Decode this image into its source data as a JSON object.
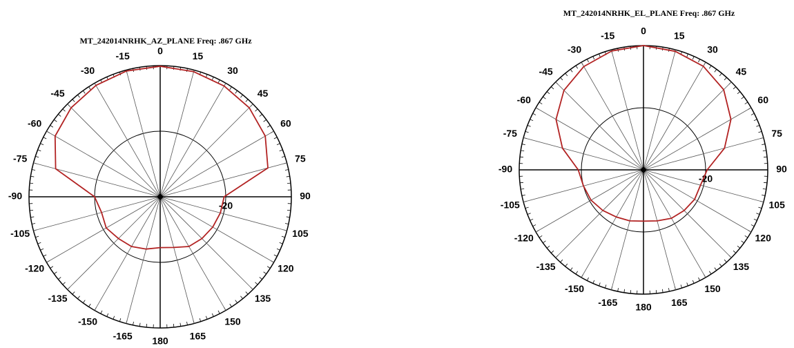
{
  "chart_data": [
    {
      "type": "polar",
      "title": "MT_242014NRHK_AZ_PLANE  Freq:  .867 GHz",
      "color": "#b22222",
      "theta": [
        -180,
        -165,
        -150,
        -135,
        -120,
        -105,
        -90,
        -75,
        -60,
        -45,
        -30,
        -15,
        0,
        15,
        30,
        45,
        60,
        75,
        90,
        105,
        120,
        135,
        150,
        165,
        180
      ],
      "values": [
        -24.5,
        -23.5,
        -22.5,
        -22,
        -21,
        -21.5,
        -20,
        -7,
        -3,
        -1.6,
        -0.8,
        -0.3,
        -0.2,
        -0.5,
        -1,
        -1.6,
        -3,
        -6,
        -20.5,
        -21,
        -21.5,
        -22,
        -22.5,
        -24,
        -24.5
      ],
      "rlim": [
        -40,
        0
      ],
      "rticks": [
        -20
      ],
      "thetaticks": [
        0,
        15,
        30,
        45,
        60,
        75,
        90,
        105,
        120,
        135,
        150,
        165,
        180,
        -165,
        -150,
        -135,
        -120,
        -105,
        -90,
        -75,
        -60,
        -45,
        -30,
        -15
      ]
    },
    {
      "type": "polar",
      "title": "MT_242014NRHK_EL_PLANE  Freq:  .867 GHz",
      "color": "#b22222",
      "theta": [
        -180,
        -165,
        -150,
        -135,
        -120,
        -105,
        -90,
        -75,
        -60,
        -45,
        -30,
        -15,
        0,
        15,
        30,
        45,
        60,
        75,
        90,
        105,
        120,
        135,
        150,
        165,
        180
      ],
      "values": [
        -23.5,
        -23,
        -22.5,
        -21.5,
        -20.5,
        -20,
        -19,
        -13,
        -7.5,
        -3.8,
        -1.6,
        -0.4,
        0,
        -0.5,
        -1.5,
        -3.5,
        -7.5,
        -13,
        -19.5,
        -21,
        -21,
        -21.5,
        -22,
        -23,
        -23.5
      ],
      "rlim": [
        -40,
        0
      ],
      "rticks": [
        -20
      ],
      "thetaticks": [
        0,
        15,
        30,
        45,
        60,
        75,
        90,
        105,
        120,
        135,
        150,
        165,
        180,
        -165,
        -150,
        -135,
        -120,
        -105,
        -90,
        -75,
        -60,
        -45,
        -30,
        -15
      ]
    }
  ]
}
